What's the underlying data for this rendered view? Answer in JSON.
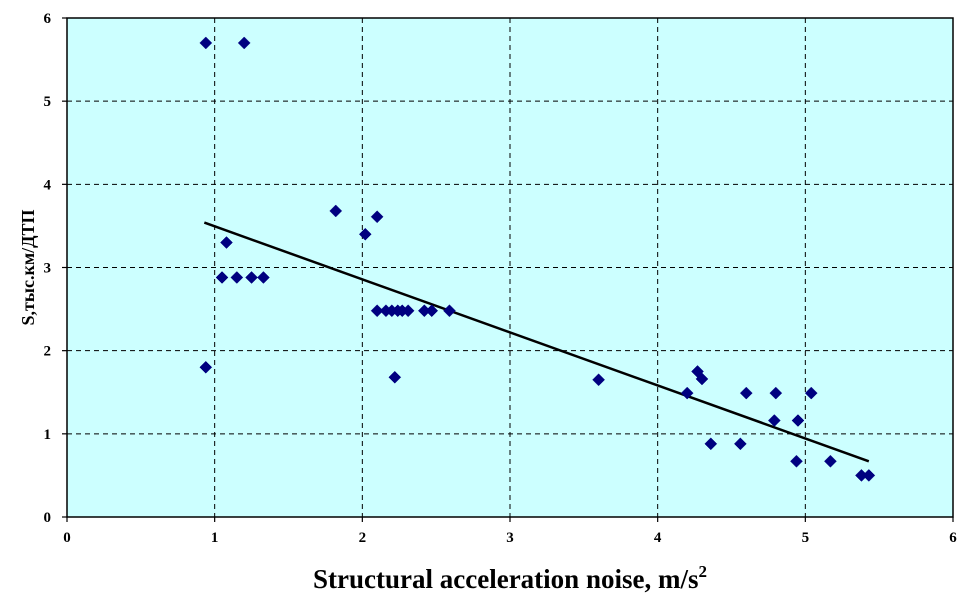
{
  "chart_data": {
    "type": "scatter",
    "title": "",
    "xlabel": "Structural acceleration noise, m/s",
    "xlabel_superscript": "2",
    "ylabel": "S,тыс.км/ДТП",
    "xlim": [
      0,
      6
    ],
    "ylim": [
      0,
      6
    ],
    "x_ticks": [
      "0",
      "1",
      "2",
      "3",
      "4",
      "5",
      "6"
    ],
    "y_ticks": [
      "0",
      "1",
      "2",
      "3",
      "4",
      "5",
      "6"
    ],
    "grid": true,
    "grid_style": "dashed",
    "legend": "none",
    "colors": {
      "plot_background": "#ccffff",
      "marker": "#000080",
      "trend_line": "#000000",
      "grid": "#000000"
    },
    "series": [
      {
        "marker": "diamond",
        "points": [
          [
            0.94,
            5.7
          ],
          [
            1.2,
            5.7
          ],
          [
            0.94,
            1.8
          ],
          [
            1.08,
            3.3
          ],
          [
            1.05,
            2.88
          ],
          [
            1.15,
            2.88
          ],
          [
            1.25,
            2.88
          ],
          [
            1.33,
            2.88
          ],
          [
            1.82,
            3.68
          ],
          [
            2.02,
            3.4
          ],
          [
            2.1,
            3.61
          ],
          [
            2.1,
            2.48
          ],
          [
            2.16,
            2.48
          ],
          [
            2.2,
            2.48
          ],
          [
            2.24,
            2.48
          ],
          [
            2.27,
            2.48
          ],
          [
            2.31,
            2.48
          ],
          [
            2.42,
            2.48
          ],
          [
            2.47,
            2.48
          ],
          [
            2.59,
            2.48
          ],
          [
            2.22,
            1.68
          ],
          [
            3.6,
            1.65
          ],
          [
            4.2,
            1.49
          ],
          [
            4.27,
            1.75
          ],
          [
            4.3,
            1.66
          ],
          [
            4.36,
            0.88
          ],
          [
            4.56,
            0.88
          ],
          [
            4.6,
            1.49
          ],
          [
            4.79,
            1.16
          ],
          [
            4.8,
            1.49
          ],
          [
            4.94,
            0.67
          ],
          [
            4.95,
            1.16
          ],
          [
            5.04,
            1.49
          ],
          [
            5.17,
            0.67
          ],
          [
            5.38,
            0.5
          ],
          [
            5.43,
            0.5
          ]
        ]
      }
    ],
    "trendline": {
      "type": "linear",
      "x": [
        0.93,
        5.43
      ],
      "y": [
        3.54,
        0.67
      ]
    }
  }
}
